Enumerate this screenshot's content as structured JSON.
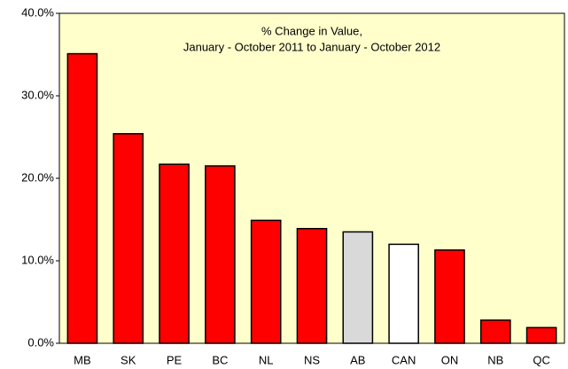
{
  "chart_data": {
    "type": "bar",
    "title": "% Change in Value,",
    "subtitle": "January - October 2011 to January - October 2012",
    "categories": [
      "MB",
      "SK",
      "PE",
      "BC",
      "NL",
      "NS",
      "AB",
      "CAN",
      "ON",
      "NB",
      "QC"
    ],
    "values": [
      35.1,
      25.4,
      21.7,
      21.5,
      14.9,
      13.9,
      13.5,
      12.0,
      11.3,
      2.8,
      1.9
    ],
    "colors": [
      "#ff0000",
      "#ff0000",
      "#ff0000",
      "#ff0000",
      "#ff0000",
      "#ff0000",
      "#d9d9d9",
      "#ffffff",
      "#ff0000",
      "#ff0000",
      "#ff0000"
    ],
    "ylim": [
      0,
      40
    ],
    "yticks": [
      {
        "value": 0,
        "label": "0.0%"
      },
      {
        "value": 10,
        "label": "10.0%"
      },
      {
        "value": 20,
        "label": "20.0%"
      },
      {
        "value": 30,
        "label": "30.0%"
      },
      {
        "value": 40,
        "label": "40.0%"
      }
    ],
    "plot_background": "#ffffcc",
    "grid": false
  }
}
